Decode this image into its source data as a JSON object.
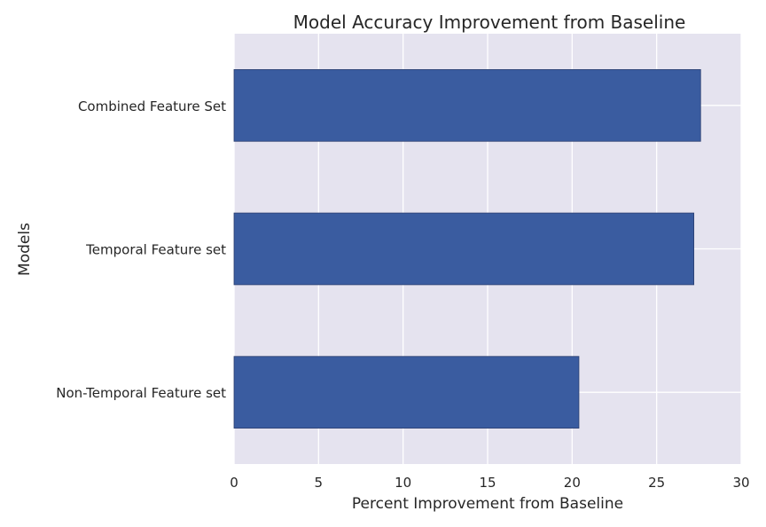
{
  "chart_data": {
    "type": "bar",
    "orientation": "horizontal",
    "title": "Model Accuracy Improvement from Baseline",
    "xlabel": "Percent Improvement from Baseline",
    "ylabel": "Models",
    "categories": [
      "Combined Feature Set",
      "Temporal Feature set",
      "Non-Temporal Feature set"
    ],
    "values": [
      27.6,
      27.2,
      20.4
    ],
    "xlim": [
      0,
      30
    ],
    "xticks": [
      "0",
      "5",
      "10",
      "15",
      "20",
      "25",
      "30"
    ],
    "grid": true,
    "legend": "none",
    "colors": {
      "bar": "#3a5ca0",
      "bar_edge": "#2b3f70",
      "plot_background": "#e5e3ef",
      "grid": "#ffffff"
    }
  }
}
